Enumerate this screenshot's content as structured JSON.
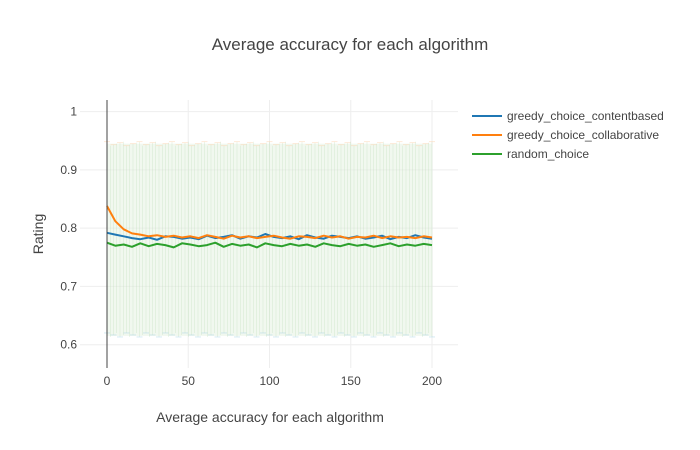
{
  "chart_data": {
    "type": "line",
    "title": "Average accuracy for each algorithm",
    "xlabel": "Average accuracy for each algorithm",
    "ylabel": "Rating",
    "xlim": [
      0,
      200
    ],
    "ylim": [
      0.56,
      1.02
    ],
    "xticks": [
      0,
      50,
      100,
      150,
      200
    ],
    "yticks": [
      0.6,
      0.7,
      0.8,
      0.9,
      1
    ],
    "grid": true,
    "legend_position": "top-right",
    "error_band": {
      "upper": 0.945,
      "lower": 0.615
    },
    "series": [
      {
        "name": "greedy_choice_contentbased",
        "color": "#1f77b4",
        "values": [
          0.792,
          0.789,
          0.786,
          0.783,
          0.781,
          0.784,
          0.78,
          0.786,
          0.785,
          0.782,
          0.784,
          0.781,
          0.787,
          0.783,
          0.785,
          0.788,
          0.782,
          0.786,
          0.784,
          0.79,
          0.785,
          0.783,
          0.786,
          0.781,
          0.788,
          0.784,
          0.782,
          0.787,
          0.785,
          0.783,
          0.786,
          0.782,
          0.784,
          0.787,
          0.781,
          0.785,
          0.783,
          0.788,
          0.784,
          0.782
        ]
      },
      {
        "name": "greedy_choice_collaborative",
        "color": "#ff7f0e",
        "values": [
          0.838,
          0.812,
          0.798,
          0.791,
          0.789,
          0.786,
          0.788,
          0.785,
          0.787,
          0.784,
          0.786,
          0.783,
          0.788,
          0.785,
          0.782,
          0.787,
          0.784,
          0.786,
          0.783,
          0.785,
          0.787,
          0.784,
          0.782,
          0.786,
          0.785,
          0.783,
          0.787,
          0.784,
          0.786,
          0.782,
          0.785,
          0.784,
          0.787,
          0.783,
          0.786,
          0.784,
          0.785,
          0.783,
          0.786,
          0.784
        ]
      },
      {
        "name": "random_choice",
        "color": "#2ca02c",
        "values": [
          0.775,
          0.77,
          0.772,
          0.768,
          0.774,
          0.769,
          0.773,
          0.771,
          0.767,
          0.774,
          0.772,
          0.769,
          0.771,
          0.775,
          0.768,
          0.773,
          0.77,
          0.772,
          0.767,
          0.774,
          0.771,
          0.769,
          0.773,
          0.77,
          0.772,
          0.768,
          0.774,
          0.771,
          0.769,
          0.773,
          0.77,
          0.772,
          0.768,
          0.771,
          0.774,
          0.769,
          0.772,
          0.77,
          0.773,
          0.771
        ]
      }
    ]
  }
}
